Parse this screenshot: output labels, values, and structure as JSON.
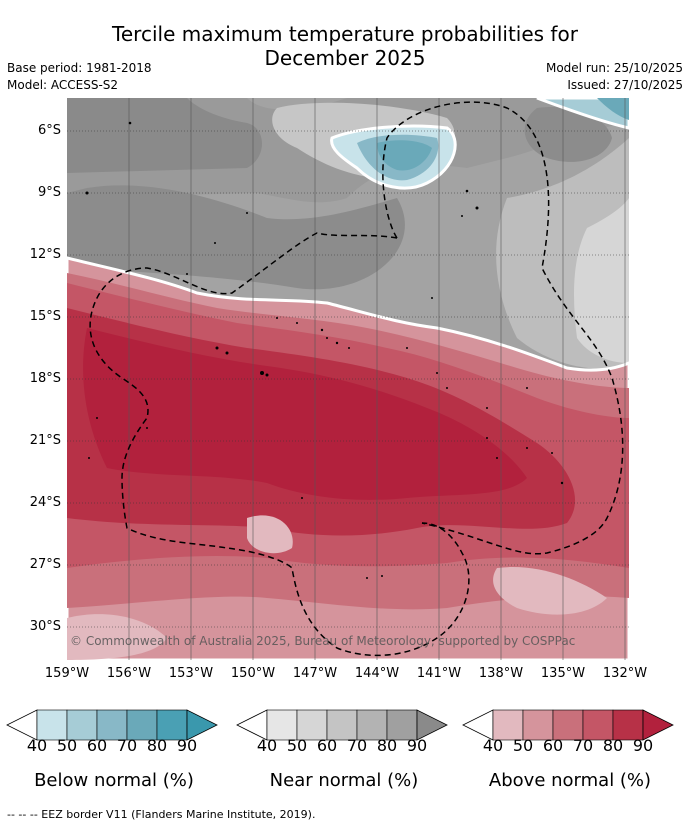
{
  "title_line1": "Tercile maximum temperature probabilities for",
  "title_line2": "December 2025",
  "base_period": "Base period: 1981-2018",
  "model": "Model: ACCESS-S2",
  "model_run": "Model run: 25/10/2025",
  "issued": "Issued: 27/10/2025",
  "copyright": "© Commonwealth of Australia 2025, Bureau of Meteorology, supported by COSPPac",
  "lat_labels": [
    "6°S",
    "9°S",
    "12°S",
    "15°S",
    "18°S",
    "21°S",
    "24°S",
    "27°S",
    "30°S"
  ],
  "lon_labels": [
    "159°W",
    "156°W",
    "153°W",
    "150°W",
    "147°W",
    "144°W",
    "141°W",
    "138°W",
    "135°W",
    "132°W"
  ],
  "legend": {
    "below": {
      "title": "Below normal (%)",
      "ticks": [
        "40",
        "50",
        "60",
        "70",
        "80",
        "90"
      ],
      "colors": [
        "#ffffff",
        "#c8e3ea",
        "#a6ccd6",
        "#88b8c7",
        "#6aa9b9",
        "#4aa0b4",
        "#3a98ad"
      ]
    },
    "near": {
      "title": "Near normal (%)",
      "ticks": [
        "40",
        "50",
        "60",
        "70",
        "80",
        "90"
      ],
      "colors": [
        "#ffffff",
        "#e6e6e6",
        "#d6d6d6",
        "#c4c4c4",
        "#b3b3b3",
        "#a0a0a0",
        "#8a8a8a"
      ]
    },
    "above": {
      "title": "Above normal (%)",
      "ticks": [
        "40",
        "50",
        "60",
        "70",
        "80",
        "90"
      ],
      "colors": [
        "#ffffff",
        "#e2b9bf",
        "#d5949c",
        "#c9707b",
        "#c45666",
        "#b73147",
        "#b2213d"
      ]
    }
  },
  "footnote": "--  --  -- EEZ border V11 (Flanders Marine Institute, 2019)."
}
